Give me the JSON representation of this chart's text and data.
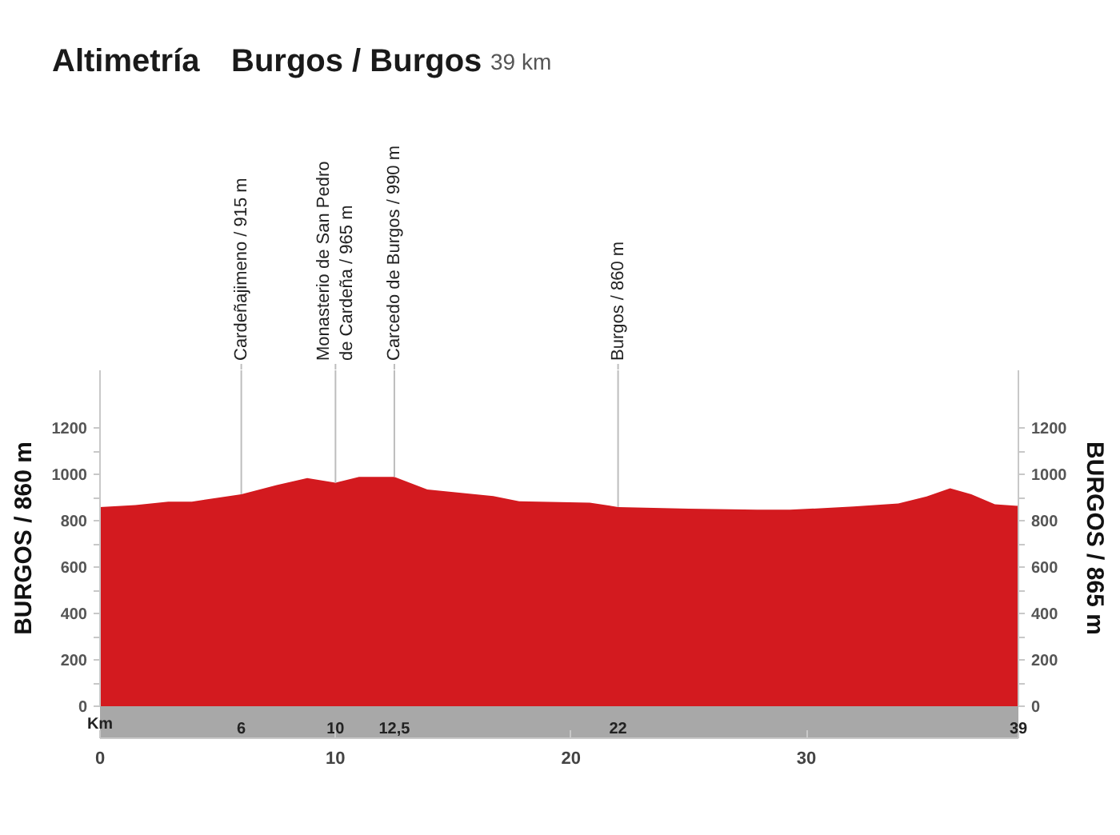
{
  "chart_data": {
    "type": "area",
    "title": "Altimetría",
    "subtitle": "Burgos / Burgos",
    "annotations": [
      "39 km",
      {
        "text": "Cardeñajimeno / 915 m",
        "x": 6,
        "y": 915
      },
      {
        "text": "Monasterio de San Pedro\nde Cardeña / 965 m",
        "x": 10,
        "y": 965
      },
      {
        "text": "Carcedo de Burgos / 990 m",
        "x": 12.5,
        "y": 990
      },
      {
        "text": "Burgos / 860 m",
        "x": 22,
        "y": 860
      }
    ],
    "x": [
      0,
      1.5,
      2.9,
      3.9,
      6,
      7.5,
      8.8,
      10,
      11,
      12.5,
      13.9,
      16.7,
      17.8,
      20.8,
      22,
      25,
      27.9,
      29.3,
      32,
      33.9,
      35.1,
      36.1,
      37,
      38,
      39
    ],
    "values": [
      860,
      868,
      883,
      883,
      915,
      955,
      985,
      965,
      990,
      990,
      936,
      907,
      885,
      879,
      860,
      853,
      848,
      848,
      862,
      875,
      905,
      941,
      915,
      872,
      865
    ],
    "color": "#d31a1f",
    "xlim": [
      0,
      39
    ],
    "xticks": [
      0,
      10,
      20,
      30,
      {
        "value": 39,
        "label": null
      }
    ],
    "x2lim": [
      0,
      39
    ],
    "x2ticks": [
      6,
      10,
      {
        "value": 12.5,
        "label": "12,5"
      },
      22,
      39
    ],
    "x2label": "Km",
    "ylim": [
      0,
      1450
    ],
    "yticks": [
      0,
      {
        "value": 100,
        "label": null
      },
      200,
      {
        "value": 300,
        "label": null
      },
      400,
      {
        "value": 500,
        "label": null
      },
      600,
      {
        "value": 700,
        "label": null
      },
      800,
      {
        "value": 900,
        "label": null
      },
      1000,
      {
        "value": 1100,
        "label": null
      },
      1200
    ],
    "ylabel": "BURGOS / 860 m",
    "y2lim": [
      0,
      1450
    ],
    "y2ticks": [
      0,
      {
        "value": 100,
        "label": null
      },
      200,
      {
        "value": 300,
        "label": null
      },
      400,
      {
        "value": 500,
        "label": null
      },
      600,
      {
        "value": 700,
        "label": null
      },
      800,
      {
        "value": 900,
        "label": null
      },
      1000,
      {
        "value": 1100,
        "label": null
      },
      1200
    ],
    "y2label": "BURGOS / 865 m",
    "grid": false
  }
}
